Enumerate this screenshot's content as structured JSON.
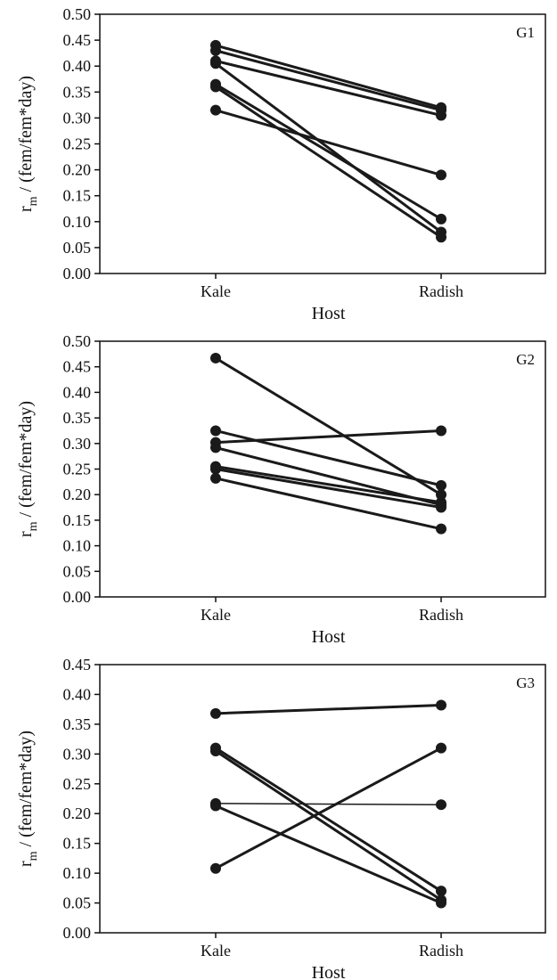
{
  "chart_data": [
    {
      "type": "line",
      "title": "G1",
      "xlabel": "Host",
      "ylabel_main": "r",
      "ylabel_sub": "m",
      "ylabel_rest": " / (fem/fem*day)",
      "categories": [
        "Kale",
        "Radish"
      ],
      "ylim": [
        0,
        0.5
      ],
      "yticks": [
        "0.00",
        "0.05",
        "0.10",
        "0.15",
        "0.20",
        "0.25",
        "0.30",
        "0.35",
        "0.40",
        "0.45",
        "0.50"
      ],
      "series": [
        {
          "values": [
            0.44,
            0.32
          ],
          "thin": false
        },
        {
          "values": [
            0.43,
            0.315
          ],
          "thin": false
        },
        {
          "values": [
            0.41,
            0.305
          ],
          "thin": false
        },
        {
          "values": [
            0.405,
            0.08
          ],
          "thin": false
        },
        {
          "values": [
            0.365,
            0.105
          ],
          "thin": false
        },
        {
          "values": [
            0.36,
            0.07
          ],
          "thin": false
        },
        {
          "values": [
            0.315,
            0.19
          ],
          "thin": false
        }
      ]
    },
    {
      "type": "line",
      "title": "G2",
      "xlabel": "Host",
      "ylabel_main": "r",
      "ylabel_sub": "m",
      "ylabel_rest": " / (fem/fem*day)",
      "categories": [
        "Kale",
        "Radish"
      ],
      "ylim": [
        0,
        0.5
      ],
      "yticks": [
        "0.00",
        "0.05",
        "0.10",
        "0.15",
        "0.20",
        "0.25",
        "0.30",
        "0.35",
        "0.40",
        "0.45",
        "0.50"
      ],
      "series": [
        {
          "values": [
            0.467,
            0.2
          ],
          "thin": false
        },
        {
          "values": [
            0.325,
            0.218
          ],
          "thin": false
        },
        {
          "values": [
            0.302,
            0.325
          ],
          "thin": false
        },
        {
          "values": [
            0.292,
            0.18
          ],
          "thin": false
        },
        {
          "values": [
            0.255,
            0.185
          ],
          "thin": false
        },
        {
          "values": [
            0.25,
            0.175
          ],
          "thin": false
        },
        {
          "values": [
            0.232,
            0.133
          ],
          "thin": false
        }
      ]
    },
    {
      "type": "line",
      "title": "G3",
      "xlabel": "Host",
      "ylabel_main": "r",
      "ylabel_sub": "m",
      "ylabel_rest": " / (fem/fem*day)",
      "categories": [
        "Kale",
        "Radish"
      ],
      "ylim": [
        0,
        0.45
      ],
      "yticks": [
        "0.00",
        "0.05",
        "0.10",
        "0.15",
        "0.20",
        "0.25",
        "0.30",
        "0.35",
        "0.40",
        "0.45"
      ],
      "series": [
        {
          "values": [
            0.368,
            0.382
          ],
          "thin": false
        },
        {
          "values": [
            0.31,
            0.07
          ],
          "thin": false
        },
        {
          "values": [
            0.305,
            0.055
          ],
          "thin": false
        },
        {
          "values": [
            0.217,
            0.215
          ],
          "thin": true
        },
        {
          "values": [
            0.213,
            0.05
          ],
          "thin": false
        },
        {
          "values": [
            0.108,
            0.31
          ],
          "thin": false
        }
      ]
    }
  ]
}
